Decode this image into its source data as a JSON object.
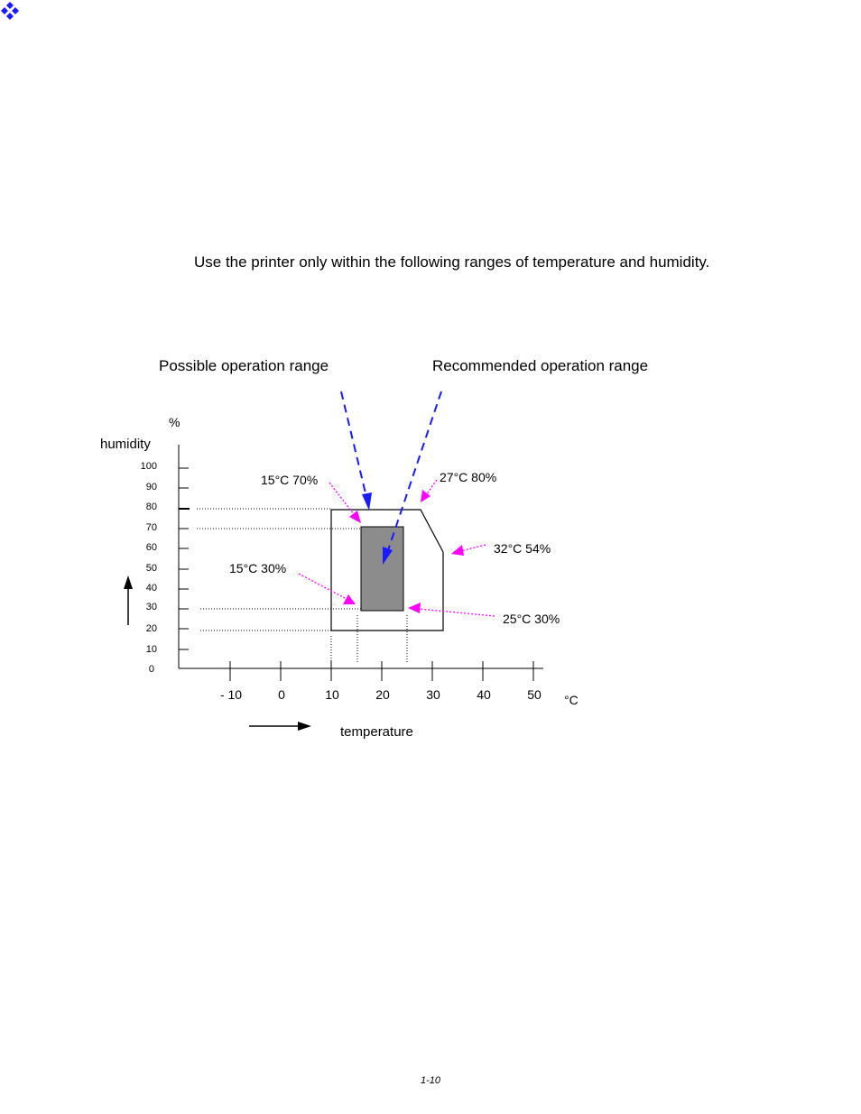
{
  "instruction": "Use the printer only within the following ranges of temperature and humidity.",
  "legend": {
    "possible": "Possible operation range",
    "recommended": "Recommended operation range"
  },
  "axes": {
    "y_unit": "%",
    "y_label": "humidity",
    "x_unit": "°C",
    "x_label": "temperature",
    "y_ticks": [
      "100",
      "90",
      "80",
      "70",
      "60",
      "50",
      "40",
      "30",
      "20",
      "10",
      "0"
    ],
    "x_ticks": [
      "- 10",
      "0",
      "10",
      "20",
      "30",
      "40",
      "50"
    ]
  },
  "annotations": {
    "top_left": "15°C 70%",
    "top_right": "27°C 80%",
    "right": "32°C 54%",
    "bottom_left": "15°C 30%",
    "bottom_right": "25°C 30%"
  },
  "footer": "1-10",
  "colors": {
    "bullet": "#1a1aff",
    "pointer_blue": "#1a1aff",
    "pointer_magenta": "#ff00ff",
    "recommended_fill": "#8c8c8c"
  }
}
